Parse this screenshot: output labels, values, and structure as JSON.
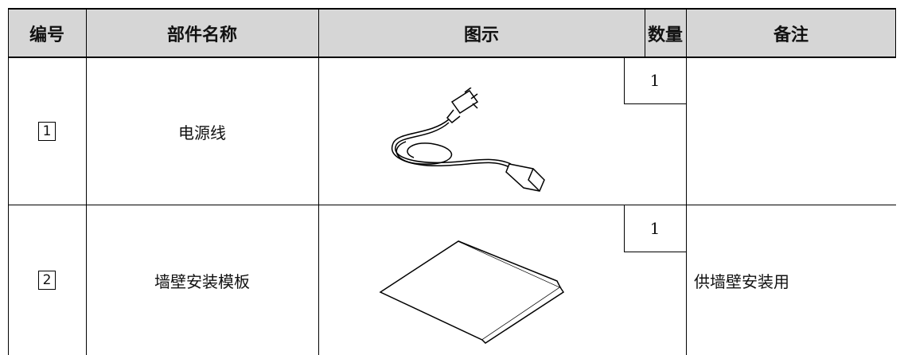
{
  "table": {
    "header": [
      "编号",
      "部件名称",
      "图示",
      "数量",
      "备注"
    ],
    "rows": [
      {
        "number": "1",
        "name": "电源线",
        "quantity": 1
      },
      {
        "number": "2",
        "name": "墙壁安装模板",
        "quantity": 1,
        "note": "供墙壁安装用"
      }
    ]
  }
}
